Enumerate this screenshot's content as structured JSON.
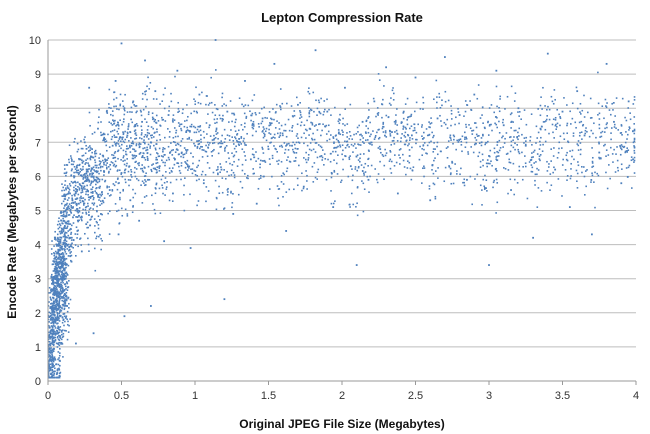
{
  "chart_data": {
    "type": "scatter",
    "title": "Lepton Compression Rate",
    "xlabel": "Original JPEG File Size (Megabytes)",
    "ylabel": "Encode Rate (Megabytes per second)",
    "xlim": [
      0,
      4
    ],
    "ylim": [
      0,
      10
    ],
    "xticks": [
      "0",
      "0.5",
      "1",
      "1.5",
      "2",
      "2.5",
      "3",
      "3.5",
      "4"
    ],
    "yticks": [
      "0",
      "1",
      "2",
      "3",
      "4",
      "5",
      "6",
      "7",
      "8",
      "9",
      "10"
    ],
    "grid": "horizontal",
    "legend": "none",
    "color": "#4f81bd",
    "note": "representative sample of the plotted points",
    "points": [
      [
        0.01,
        0.3
      ],
      [
        0.01,
        0.6
      ],
      [
        0.02,
        0.9
      ],
      [
        0.02,
        1.3
      ],
      [
        0.03,
        1.6
      ],
      [
        0.03,
        2.0
      ],
      [
        0.04,
        2.3
      ],
      [
        0.04,
        2.7
      ],
      [
        0.05,
        3.0
      ],
      [
        0.05,
        1.8
      ],
      [
        0.06,
        2.5
      ],
      [
        0.06,
        3.4
      ],
      [
        0.07,
        2.1
      ],
      [
        0.07,
        3.8
      ],
      [
        0.08,
        2.8
      ],
      [
        0.08,
        1.5
      ],
      [
        0.09,
        3.2
      ],
      [
        0.09,
        4.2
      ],
      [
        0.1,
        2.6
      ],
      [
        0.1,
        3.6
      ],
      [
        0.02,
        0.2
      ],
      [
        0.06,
        0.2
      ],
      [
        0.11,
        4.5
      ],
      [
        0.12,
        3.0
      ],
      [
        0.12,
        5.0
      ],
      [
        0.13,
        2.2
      ],
      [
        0.14,
        4.0
      ],
      [
        0.15,
        5.5
      ],
      [
        0.16,
        3.5
      ],
      [
        0.17,
        4.8
      ],
      [
        0.18,
        6.0
      ],
      [
        0.19,
        1.1
      ],
      [
        0.2,
        4.4
      ],
      [
        0.21,
        5.2
      ],
      [
        0.22,
        6.5
      ],
      [
        0.23,
        3.8
      ],
      [
        0.24,
        5.8
      ],
      [
        0.25,
        7.0
      ],
      [
        0.26,
        4.6
      ],
      [
        0.27,
        6.2
      ],
      [
        0.28,
        8.6
      ],
      [
        0.29,
        5.4
      ],
      [
        0.3,
        6.8
      ],
      [
        0.31,
        1.4
      ],
      [
        0.32,
        5.9
      ],
      [
        0.34,
        7.4
      ],
      [
        0.36,
        4.9
      ],
      [
        0.38,
        6.4
      ],
      [
        0.4,
        7.9
      ],
      [
        0.42,
        5.6
      ],
      [
        0.44,
        6.9
      ],
      [
        0.46,
        8.8
      ],
      [
        0.48,
        4.3
      ],
      [
        0.5,
        6.1
      ],
      [
        0.5,
        9.9
      ],
      [
        0.52,
        1.9
      ],
      [
        0.54,
        7.2
      ],
      [
        0.56,
        5.3
      ],
      [
        0.58,
        8.2
      ],
      [
        0.6,
        6.6
      ],
      [
        0.62,
        4.7
      ],
      [
        0.64,
        7.6
      ],
      [
        0.66,
        9.4
      ],
      [
        0.68,
        5.9
      ],
      [
        0.7,
        2.2
      ],
      [
        0.7,
        7.0
      ],
      [
        0.73,
        8.5
      ],
      [
        0.76,
        6.3
      ],
      [
        0.79,
        4.1
      ],
      [
        0.82,
        7.8
      ],
      [
        0.85,
        5.5
      ],
      [
        0.88,
        9.1
      ],
      [
        0.91,
        6.7
      ],
      [
        0.94,
        7.3
      ],
      [
        0.97,
        3.9
      ],
      [
        1.0,
        6.9
      ],
      [
        1.03,
        8.4
      ],
      [
        1.06,
        5.8
      ],
      [
        1.1,
        7.5
      ],
      [
        1.14,
        10.0
      ],
      [
        1.18,
        6.2
      ],
      [
        1.2,
        2.4
      ],
      [
        1.22,
        7.9
      ],
      [
        1.26,
        4.9
      ],
      [
        1.3,
        7.1
      ],
      [
        1.34,
        8.8
      ],
      [
        1.38,
        6.5
      ],
      [
        1.42,
        5.2
      ],
      [
        1.46,
        7.7
      ],
      [
        1.5,
        6.8
      ],
      [
        1.54,
        9.3
      ],
      [
        1.58,
        7.2
      ],
      [
        1.62,
        4.4
      ],
      [
        1.66,
        6.9
      ],
      [
        1.7,
        8.1
      ],
      [
        1.74,
        5.7
      ],
      [
        1.78,
        7.4
      ],
      [
        1.82,
        9.7
      ],
      [
        1.86,
        6.6
      ],
      [
        1.9,
        7.9
      ],
      [
        1.94,
        5.1
      ],
      [
        1.98,
        7.0
      ],
      [
        2.02,
        8.6
      ],
      [
        2.06,
        6.3
      ],
      [
        2.1,
        3.4
      ],
      [
        2.14,
        7.6
      ],
      [
        2.18,
        5.9
      ],
      [
        2.22,
        8.2
      ],
      [
        2.26,
        6.8
      ],
      [
        2.3,
        9.2
      ],
      [
        2.34,
        7.3
      ],
      [
        2.38,
        5.5
      ],
      [
        2.42,
        7.9
      ],
      [
        2.46,
        6.6
      ],
      [
        2.5,
        8.9
      ],
      [
        2.55,
        7.1
      ],
      [
        2.6,
        5.3
      ],
      [
        2.65,
        7.7
      ],
      [
        2.7,
        9.5
      ],
      [
        2.75,
        6.4
      ],
      [
        2.8,
        7.8
      ],
      [
        2.85,
        5.9
      ],
      [
        2.9,
        8.4
      ],
      [
        2.95,
        7.0
      ],
      [
        3.0,
        3.4
      ],
      [
        3.0,
        6.6
      ],
      [
        3.05,
        9.1
      ],
      [
        3.1,
        7.5
      ],
      [
        3.15,
        5.6
      ],
      [
        3.2,
        8.0
      ],
      [
        3.25,
        6.9
      ],
      [
        3.3,
        4.2
      ],
      [
        3.35,
        7.4
      ],
      [
        3.4,
        9.6
      ],
      [
        3.45,
        6.2
      ],
      [
        3.5,
        7.9
      ],
      [
        3.55,
        5.1
      ],
      [
        3.6,
        8.5
      ],
      [
        3.65,
        7.2
      ],
      [
        3.7,
        4.3
      ],
      [
        3.75,
        6.7
      ],
      [
        3.8,
        9.3
      ],
      [
        3.85,
        7.6
      ],
      [
        3.9,
        5.8
      ],
      [
        3.95,
        8.2
      ],
      [
        3.98,
        6.5
      ]
    ]
  }
}
